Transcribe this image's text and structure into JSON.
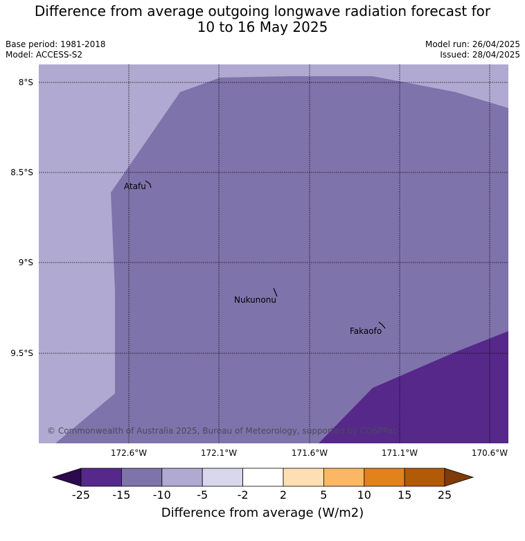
{
  "title": {
    "line1": "Difference from average outgoing longwave radiation forecast for",
    "line2": "10 to 16 May 2025"
  },
  "meta": {
    "base_period": "Base period: 1981-2018",
    "model": "Model: ACCESS-S2",
    "model_run": "Model run: 26/04/2025",
    "issued": "Issued: 28/04/2025"
  },
  "map": {
    "lat_labels": [
      "8°S",
      "8.5°S",
      "9°S",
      "9.5°S"
    ],
    "lon_labels": [
      "172.6°W",
      "172.1°W",
      "171.6°W",
      "171.1°W",
      "170.6°W"
    ],
    "places": [
      "Atafu",
      "Nukunonu",
      "Fakaofo"
    ],
    "copyright": "© Commonwealth of Australia 2025, Bureau of Meteorology, supported by COSPPac",
    "colors": {
      "band_-10_-5": "#b0a9d1",
      "band_-15_-10": "#7f73ab",
      "band_-25_-15": "#56288a"
    }
  },
  "colorbar": {
    "ticks": [
      "-25",
      "-15",
      "-10",
      "-5",
      "-2",
      "2",
      "5",
      "10",
      "15",
      "25"
    ],
    "colors": [
      "#2c0a4e",
      "#56288a",
      "#7f73ab",
      "#b0a9d1",
      "#d9d7ec",
      "#ffffff",
      "#fedfb4",
      "#fbb765",
      "#e1821c",
      "#b15a07",
      "#7f3b08"
    ],
    "label": "Difference from average (W/m2)"
  }
}
